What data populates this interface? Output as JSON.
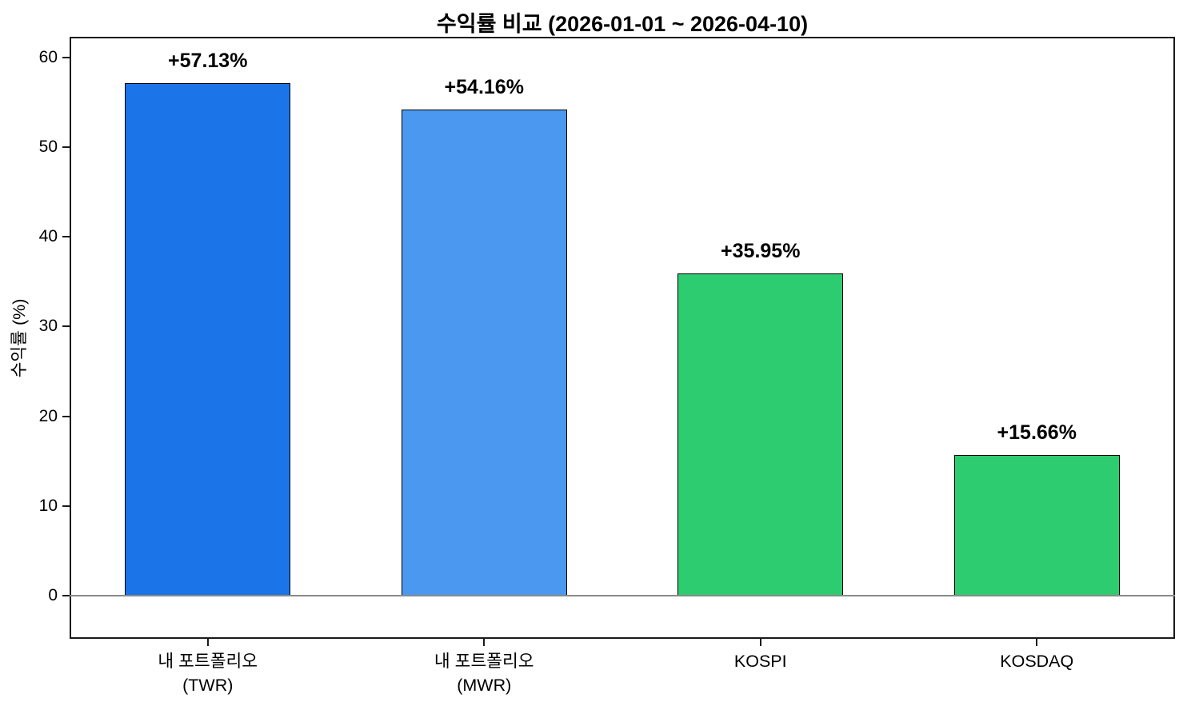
{
  "figure": {
    "title": "수익률 비교 (2026-01-01 ~ 2026-04-10)",
    "ylabel": "수익률 (%)"
  },
  "chart_data": {
    "type": "bar",
    "title": "수익률 비교 (2026-01-01 ~ 2026-04-10)",
    "xlabel": "",
    "ylabel": "수익률 (%)",
    "categories": [
      "내 포트폴리오\n(TWR)",
      "내 포트폴리오\n(MWR)",
      "KOSPI",
      "KOSDAQ"
    ],
    "values": [
      57.13,
      54.16,
      35.95,
      15.66
    ],
    "value_labels": [
      "+57.13%",
      "+54.16%",
      "+35.95%",
      "+15.66%"
    ],
    "bar_colors": [
      "#1b74e8",
      "#4a98f0",
      "#2ecc71",
      "#2ecc71"
    ],
    "bar_edge_color": "#000000",
    "bar_width_fraction": 0.6,
    "yticks": [
      0,
      10,
      20,
      30,
      40,
      50,
      60
    ],
    "ylim": [
      -4.8,
      62.3
    ],
    "zero_line_color": "#8a8a8a",
    "grid": false,
    "legend": null,
    "background_color": "#ffffff",
    "spine_color": "#1a1a1a",
    "text_color": "#000000"
  }
}
